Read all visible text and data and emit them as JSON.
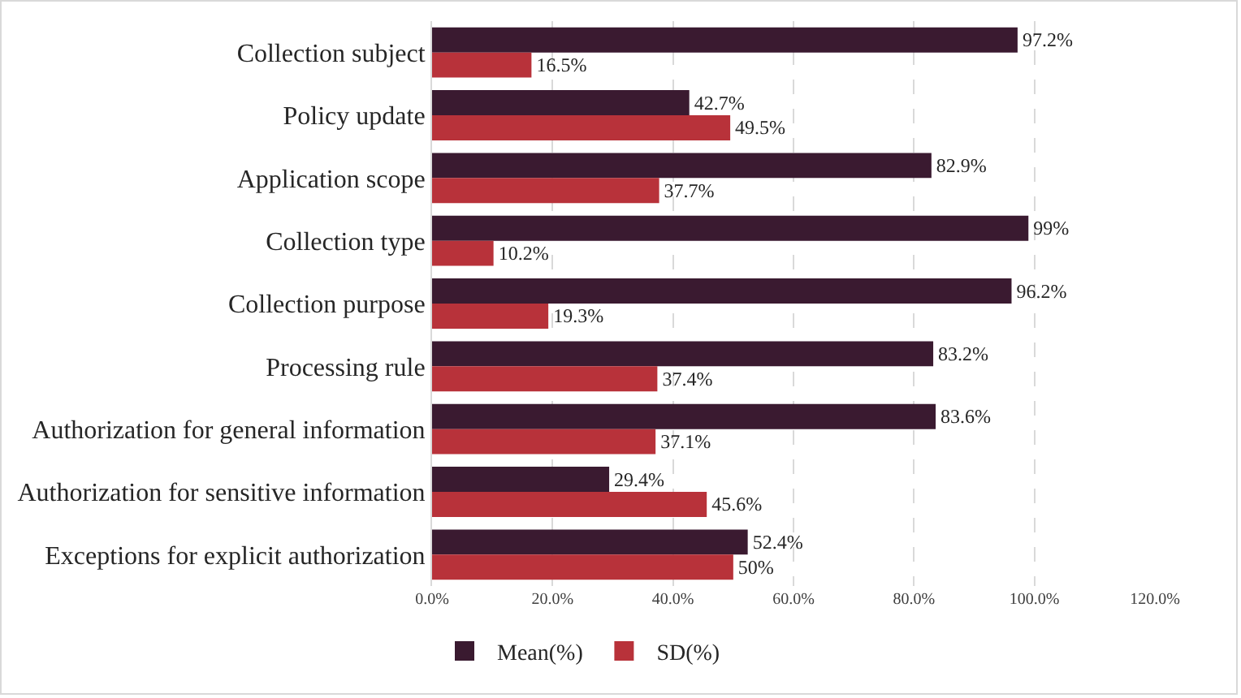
{
  "chart_data": {
    "type": "bar",
    "orientation": "horizontal",
    "categories": [
      "Collection subject",
      "Policy update",
      "Application scope",
      "Collection type",
      "Collection purpose",
      "Processing rule",
      "Authorization for general information",
      "Authorization for sensitive information",
      "Exceptions for explicit authorization"
    ],
    "series": [
      {
        "name": "Mean(%)",
        "color": "#3a1a30",
        "values": [
          97.2,
          42.7,
          82.9,
          99,
          96.2,
          83.2,
          83.6,
          29.4,
          52.4
        ],
        "value_labels": [
          "97.2%",
          "42.7%",
          "82.9%",
          "99%",
          "96.2%",
          "83.2%",
          "83.6%",
          "29.4%",
          "52.4%"
        ]
      },
      {
        "name": "SD(%)",
        "color": "#b8323a",
        "values": [
          16.5,
          49.5,
          37.7,
          10.2,
          19.3,
          37.4,
          37.1,
          45.6,
          50
        ],
        "value_labels": [
          "16.5%",
          "49.5%",
          "37.7%",
          "10.2%",
          "19.3%",
          "37.4%",
          "37.1%",
          "45.6%",
          "50%"
        ]
      }
    ],
    "xlim": [
      0,
      120
    ],
    "xticks": [
      {
        "value": 0,
        "label": "0.0%"
      },
      {
        "value": 20,
        "label": "20.0%"
      },
      {
        "value": 40,
        "label": "40.0%"
      },
      {
        "value": 60,
        "label": "60.0%"
      },
      {
        "value": 80,
        "label": "80.0%"
      },
      {
        "value": 100,
        "label": "100.0%"
      },
      {
        "value": 120,
        "label": "120.0%"
      }
    ],
    "grid": "x",
    "legend": "bottom"
  }
}
